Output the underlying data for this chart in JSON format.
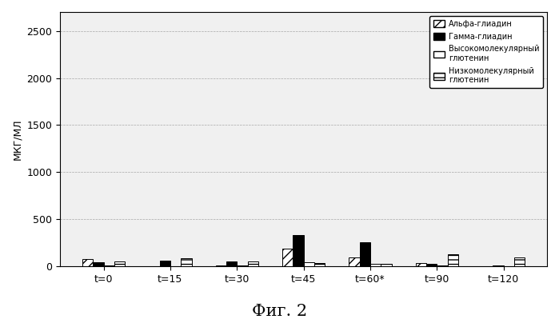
{
  "time_labels": [
    "t=0",
    "t=15",
    "t=30",
    "t=45",
    "t=60*",
    "t=90",
    "t=120"
  ],
  "series": {
    "alpha_gliadin": [
      80,
      5,
      8,
      190,
      100,
      40,
      5
    ],
    "gamma_gliadin": [
      45,
      65,
      55,
      330,
      260,
      30,
      8
    ],
    "hmw_glutenin": [
      12,
      5,
      8,
      45,
      25,
      12,
      5
    ],
    "lmw_glutenin": [
      55,
      90,
      55,
      35,
      30,
      130,
      100
    ]
  },
  "legend_labels": [
    "Альфа-глиадин",
    "Гамма-глиадин",
    "Высокомолекулярный\nглютенин",
    "Низкомолекулярный\nглютенин"
  ],
  "ylabel": "МКГ/МЛ",
  "ylim": [
    0,
    2700
  ],
  "yticks": [
    0,
    500,
    1000,
    1500,
    2000,
    2500
  ],
  "title_bottom": "Фиг. 2",
  "bg_color": "#f0f0f0",
  "bar_width": 0.16,
  "grid_color": "#888888"
}
